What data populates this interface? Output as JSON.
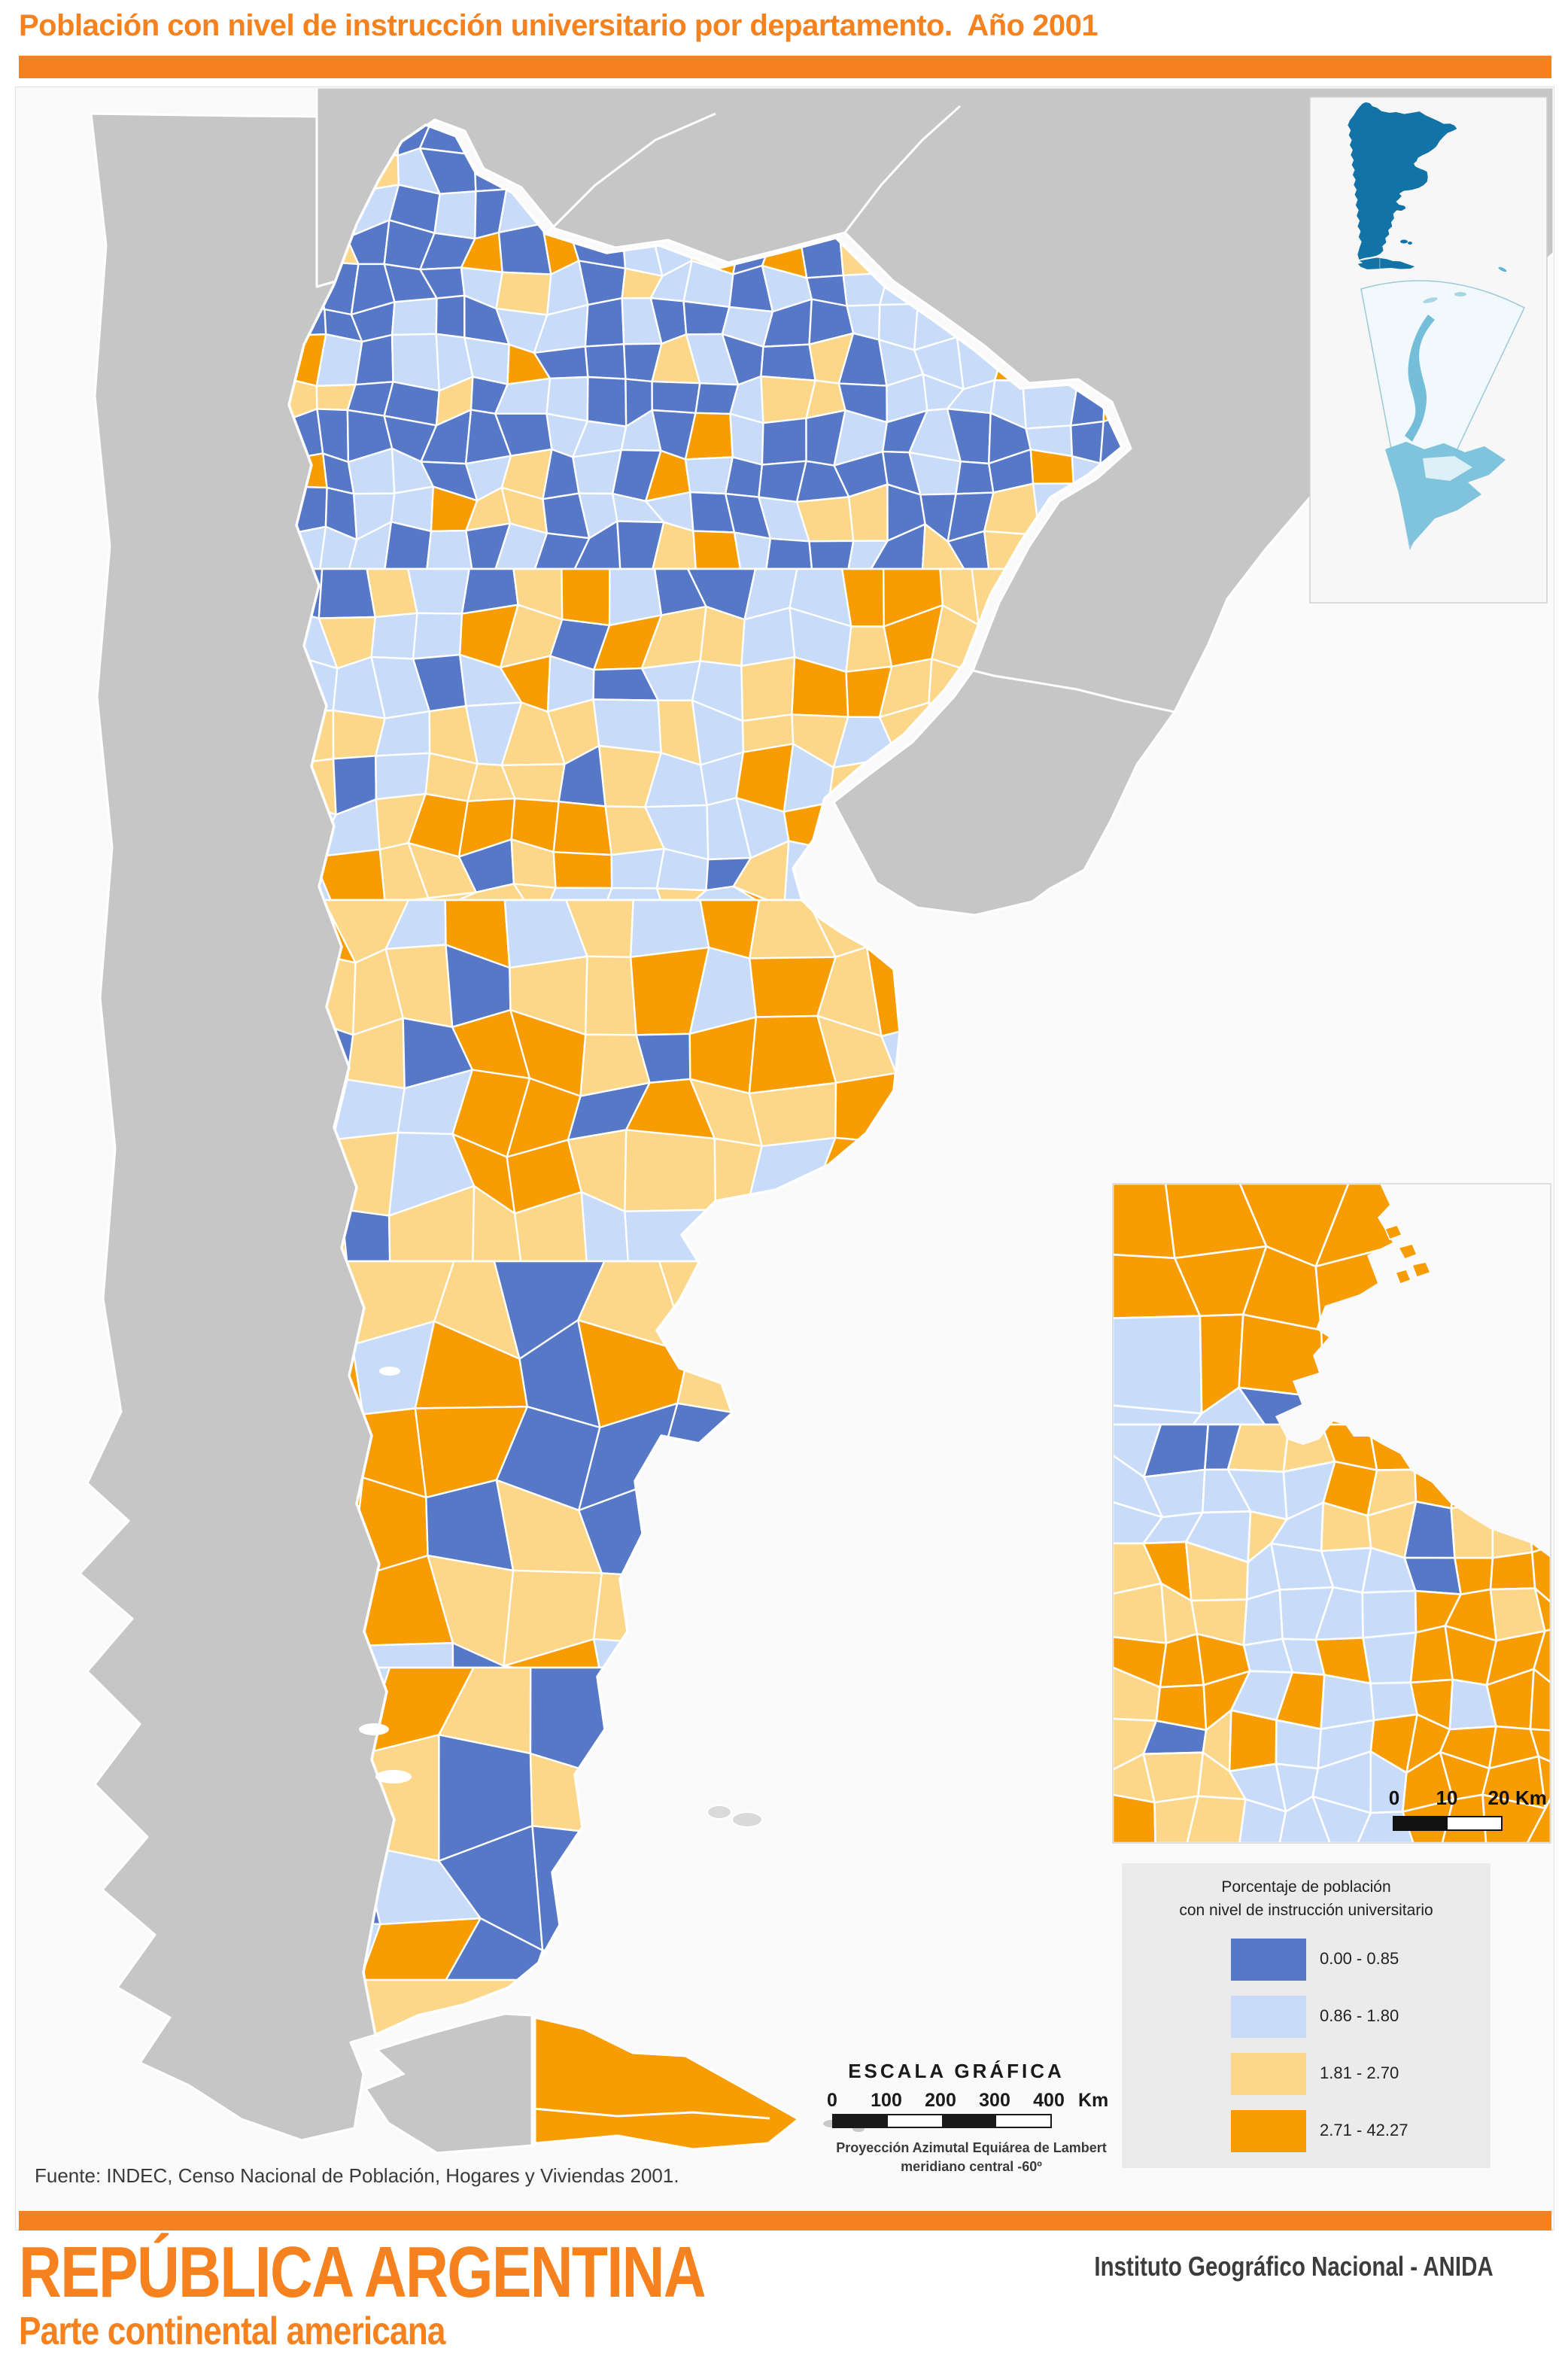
{
  "title": "Población con nivel de instrucción universitario por departamento.  Año 2001",
  "map": {
    "legend": {
      "title_line1": "Porcentaje de población",
      "title_line2": "con nivel de instrucción universitario",
      "items": [
        {
          "label": "0.00 - 0.85",
          "color": "#5678C6"
        },
        {
          "label": "0.86 - 1.80",
          "color": "#C8DCFA"
        },
        {
          "label": "1.81 - 2.70",
          "color": "#FCD78A"
        },
        {
          "label": "2.71 - 42.27",
          "color": "#F89C04"
        }
      ]
    },
    "scale": {
      "title": "ESCALA GRÁFICA",
      "ticks": [
        "0",
        "100",
        "200",
        "300",
        "400"
      ],
      "unit": "Km",
      "projection_line1": "Proyección Azimutal Equiárea de Lambert",
      "projection_line2": "meridiano central -60º"
    },
    "inset_scale": {
      "ticks": [
        "0",
        "10",
        "20"
      ],
      "unit": "Km"
    },
    "source": "Fuente: INDEC, Censo Nacional de Población, Hogares y Viviendas 2001.",
    "colors": {
      "accent": "#F5821E",
      "neighbor_gray": "#C6C6C6",
      "ocean": "#FAFAFA",
      "locator_fill": "#1173A6",
      "legend_bg": "#EBEBEB",
      "text_dark": "#3A3A3A"
    }
  },
  "footer": {
    "country": "REPÚBLICA ARGENTINA",
    "subtitle": "Parte continental americana",
    "agency": "Instituto Geográfico Nacional - ANIDA"
  }
}
